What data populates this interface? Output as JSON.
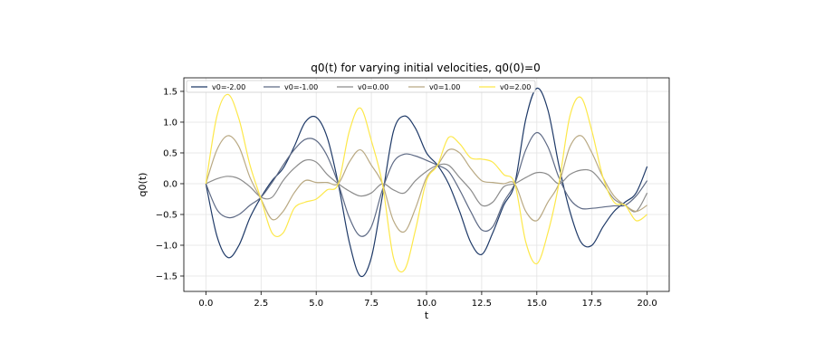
{
  "chart_data": {
    "type": "line",
    "title": "q0(t) for varying initial velocities, q0(0)=0",
    "xlabel": "t",
    "ylabel": "q0(t)",
    "xlim": [
      -1.0,
      21.0
    ],
    "ylim": [
      -1.75,
      1.72
    ],
    "grid": true,
    "legend_placement": "top, horizontal",
    "x_ticks": [
      "0.0",
      "2.5",
      "5.0",
      "7.5",
      "10.0",
      "12.5",
      "15.0",
      "17.5",
      "20.0"
    ],
    "y_ticks": [
      "1.5",
      "1.0",
      "0.5",
      "0.0",
      "−0.5",
      "−1.0",
      "−1.5"
    ],
    "x": [
      0,
      0.5,
      1.0,
      1.5,
      2.0,
      2.5,
      3.0,
      3.5,
      4.0,
      4.5,
      5.0,
      5.5,
      6.0,
      6.5,
      7.0,
      7.5,
      8.0,
      8.5,
      9.0,
      9.5,
      10.0,
      10.5,
      11.0,
      11.5,
      12.0,
      12.5,
      13.0,
      13.5,
      14.0,
      14.5,
      15.0,
      15.5,
      16.0,
      16.5,
      17.0,
      17.5,
      18.0,
      18.5,
      19.0,
      19.5,
      20.0
    ],
    "series": [
      {
        "name": "v0=-2.00",
        "color": "#1f3a68",
        "values": [
          0,
          -0.85,
          -1.2,
          -1.0,
          -0.55,
          -0.22,
          0.05,
          0.25,
          0.6,
          1.0,
          1.08,
          0.75,
          0.0,
          -0.95,
          -1.5,
          -1.2,
          -0.2,
          0.85,
          1.1,
          0.9,
          0.5,
          0.3,
          0.0,
          -0.45,
          -0.95,
          -1.15,
          -0.8,
          -0.35,
          0.0,
          1.05,
          1.55,
          1.2,
          0.3,
          -0.45,
          -0.95,
          -1.0,
          -0.7,
          -0.45,
          -0.3,
          -0.15,
          0.28
        ]
      },
      {
        "name": "v0=-1.00",
        "color": "#5e6a85",
        "values": [
          0,
          -0.42,
          -0.55,
          -0.5,
          -0.35,
          -0.22,
          0.02,
          0.3,
          0.55,
          0.72,
          0.7,
          0.45,
          0.0,
          -0.55,
          -0.85,
          -0.7,
          -0.1,
          0.35,
          0.48,
          0.45,
          0.38,
          0.3,
          0.2,
          -0.1,
          -0.45,
          -0.75,
          -0.7,
          -0.3,
          0.0,
          0.55,
          0.83,
          0.6,
          0.1,
          -0.25,
          -0.4,
          -0.4,
          -0.38,
          -0.36,
          -0.35,
          -0.2,
          0.05
        ]
      },
      {
        "name": "v0=0.00",
        "color": "#8c8c8c",
        "values": [
          0,
          0.08,
          0.12,
          0.08,
          -0.05,
          -0.22,
          -0.22,
          0.05,
          0.25,
          0.38,
          0.35,
          0.15,
          0.0,
          -0.12,
          -0.2,
          -0.15,
          0.0,
          -0.1,
          -0.15,
          0.05,
          0.2,
          0.3,
          0.3,
          0.1,
          -0.1,
          -0.35,
          -0.3,
          -0.05,
          0.0,
          0.1,
          0.18,
          0.15,
          0.0,
          0.15,
          0.22,
          0.2,
          0.0,
          -0.25,
          -0.35,
          -0.45,
          -0.15
        ]
      },
      {
        "name": "v0=1.00",
        "color": "#b9a983",
        "values": [
          0,
          0.55,
          0.78,
          0.6,
          0.1,
          -0.25,
          -0.58,
          -0.45,
          -0.15,
          0.05,
          0.02,
          0.02,
          0.0,
          0.35,
          0.55,
          0.3,
          0.0,
          -0.6,
          -0.78,
          -0.4,
          0.1,
          0.3,
          0.55,
          0.5,
          0.25,
          0.05,
          0.02,
          0.0,
          0.0,
          -0.45,
          -0.6,
          -0.3,
          0.0,
          0.6,
          0.78,
          0.5,
          0.1,
          -0.2,
          -0.35,
          -0.45,
          -0.35
        ]
      },
      {
        "name": "v0=2.00",
        "color": "#fde84a",
        "values": [
          0,
          1.1,
          1.45,
          1.05,
          0.3,
          -0.25,
          -0.8,
          -0.8,
          -0.4,
          -0.3,
          -0.25,
          -0.1,
          0.0,
          0.85,
          1.23,
          0.7,
          0.0,
          -1.2,
          -1.4,
          -0.75,
          0.05,
          0.3,
          0.75,
          0.65,
          0.42,
          0.4,
          0.35,
          0.15,
          0.0,
          -0.95,
          -1.3,
          -0.8,
          0.0,
          1.1,
          1.4,
          0.85,
          0.1,
          -0.3,
          -0.35,
          -0.6,
          -0.5
        ]
      }
    ]
  }
}
